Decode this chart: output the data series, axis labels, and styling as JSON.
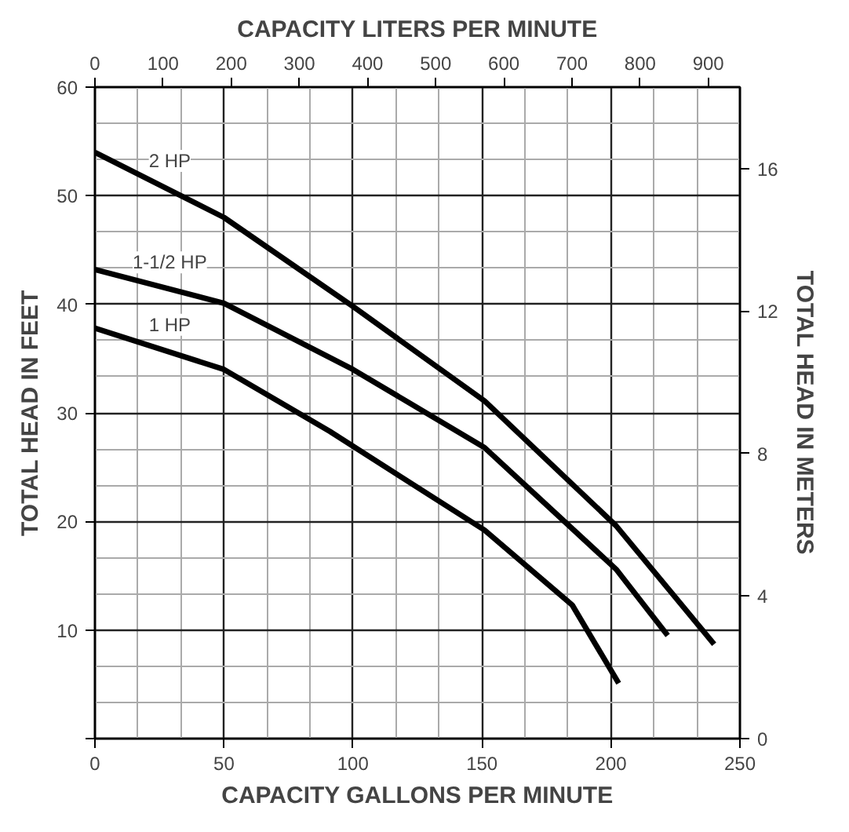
{
  "chart_data": {
    "type": "line",
    "xlabel": "CAPACITY GALLONS PER MINUTE",
    "ylabel": "TOTAL HEAD IN FEET",
    "x2label": "CAPACITY LITERS PER MINUTE",
    "y2label": "TOTAL HEAD IN METERS",
    "xlim": [
      0,
      250
    ],
    "xticks": [
      0,
      50,
      100,
      150,
      200,
      250
    ],
    "ylim": [
      0,
      60
    ],
    "yticks": [
      {
        "value": 0,
        "label": null
      },
      10,
      20,
      30,
      40,
      50,
      60
    ],
    "x2lim": [
      0,
      946.4
    ],
    "x2ticks": [
      0,
      100,
      200,
      300,
      400,
      500,
      600,
      700,
      800,
      900
    ],
    "y2lim": [
      0,
      18.29
    ],
    "y2ticks": [
      0,
      4,
      8,
      12,
      16
    ],
    "grid": true,
    "marker": "none",
    "line_style": "solid",
    "color": "#000000",
    "series": [
      {
        "name": "2 HP",
        "x": [
          0,
          50,
          100,
          151,
          202,
          240
        ],
        "values": [
          54,
          48,
          39.8,
          31.1,
          19.6,
          8.7
        ]
      },
      {
        "name": "1-1/2 HP",
        "x": [
          0,
          50,
          100,
          151,
          202,
          222
        ],
        "values": [
          43.2,
          40.1,
          34,
          26.8,
          15.6,
          9.5
        ]
      },
      {
        "name": "1 HP",
        "x": [
          0,
          50,
          91,
          151,
          185,
          203
        ],
        "values": [
          37.8,
          34,
          28.3,
          19.2,
          12.3,
          5.1
        ]
      }
    ]
  }
}
